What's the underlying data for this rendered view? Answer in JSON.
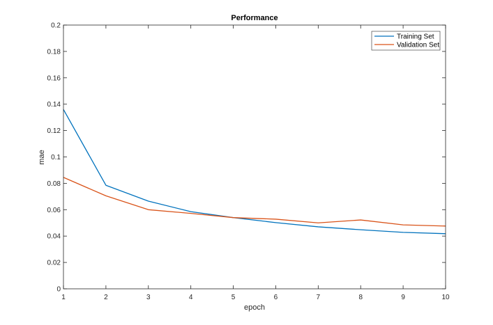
{
  "chart_data": {
    "type": "line",
    "title": "Performance",
    "xlabel": "epoch",
    "ylabel": "mae",
    "xlim": [
      1,
      10
    ],
    "ylim": [
      0,
      0.2
    ],
    "x": [
      1,
      2,
      3,
      4,
      5,
      6,
      7,
      8,
      9,
      10
    ],
    "xticks": [
      "1",
      "2",
      "3",
      "4",
      "5",
      "6",
      "7",
      "8",
      "9",
      "10"
    ],
    "yticks": [
      "0",
      "0.02",
      "0.04",
      "0.06",
      "0.08",
      "0.1",
      "0.12",
      "0.14",
      "0.16",
      "0.18",
      "0.2"
    ],
    "grid": false,
    "legend_position": "top-right",
    "series": [
      {
        "name": "Training Set",
        "color": "#0072BD",
        "values": [
          0.136,
          0.0785,
          0.0665,
          0.0585,
          0.054,
          0.0502,
          0.047,
          0.0448,
          0.0428,
          0.0418
        ]
      },
      {
        "name": "Validation Set",
        "color": "#D95319",
        "values": [
          0.0845,
          0.0705,
          0.06,
          0.0572,
          0.054,
          0.0528,
          0.05,
          0.0522,
          0.0485,
          0.0476
        ]
      }
    ]
  }
}
